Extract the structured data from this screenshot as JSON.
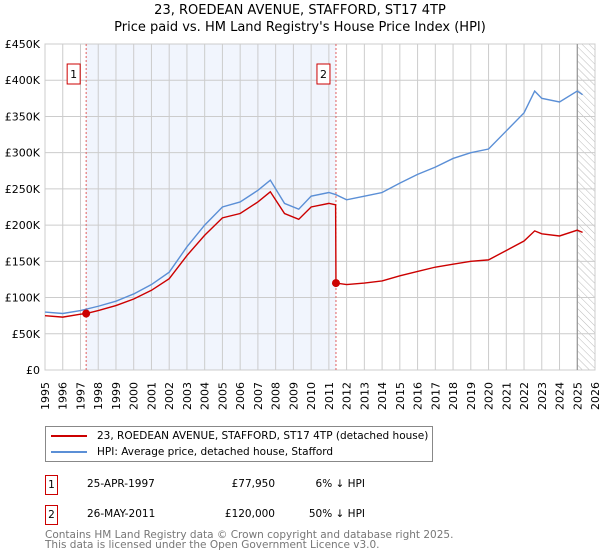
{
  "chart_data": {
    "type": "line",
    "title": "23, ROEDEAN AVENUE, STAFFORD, ST17 4TP",
    "subtitle": "Price paid vs. HM Land Registry's House Price Index (HPI)",
    "xlim": [
      1995,
      2026
    ],
    "ylim": [
      0,
      450000
    ],
    "x_ticks": [
      "1995",
      "1996",
      "1997",
      "1998",
      "1999",
      "2000",
      "2001",
      "2002",
      "2003",
      "2004",
      "2005",
      "2006",
      "2007",
      "2008",
      "2009",
      "2010",
      "2011",
      "2012",
      "2013",
      "2014",
      "2015",
      "2016",
      "2017",
      "2018",
      "2019",
      "2020",
      "2021",
      "2022",
      "2023",
      "2024",
      "2025",
      "2026"
    ],
    "y_ticks": [
      {
        "v": 0,
        "label": "£0"
      },
      {
        "v": 50000,
        "label": "£50K"
      },
      {
        "v": 100000,
        "label": "£100K"
      },
      {
        "v": 150000,
        "label": "£150K"
      },
      {
        "v": 200000,
        "label": "£200K"
      },
      {
        "v": 250000,
        "label": "£250K"
      },
      {
        "v": 300000,
        "label": "£300K"
      },
      {
        "v": 350000,
        "label": "£350K"
      },
      {
        "v": 400000,
        "label": "£400K"
      },
      {
        "v": 450000,
        "label": "£450K"
      }
    ],
    "grid": true,
    "shaded_range": [
      1997.32,
      2011.4
    ],
    "hatched_from": 2025.0,
    "series": [
      {
        "name": "23, ROEDEAN AVENUE, STAFFORD, ST17 4TP (detached house)",
        "color": "#cc0000",
        "x": [
          1995,
          1996,
          1997,
          1997.32,
          1998,
          1999,
          2000,
          2001,
          2002,
          2003,
          2004,
          2005,
          2006,
          2007,
          2007.7,
          2008.5,
          2009.3,
          2010,
          2011,
          2011.38,
          2011.4,
          2012,
          2013,
          2014,
          2015,
          2016,
          2017,
          2018,
          2019,
          2020,
          2021,
          2022,
          2022.6,
          2023,
          2024,
          2025,
          2025.3
        ],
        "y": [
          75000,
          73000,
          77000,
          77950,
          82000,
          89000,
          98000,
          110000,
          126000,
          158000,
          186000,
          210000,
          216000,
          232000,
          246000,
          216000,
          208000,
          225000,
          230000,
          228000,
          120000,
          118000,
          120000,
          123000,
          130000,
          136000,
          142000,
          146000,
          150000,
          152000,
          165000,
          178000,
          192000,
          188000,
          185000,
          193000,
          190000
        ]
      },
      {
        "name": "HPI: Average price, detached house, Stafford",
        "color": "#5b8fd6",
        "x": [
          1995,
          1996,
          1997,
          1998,
          1999,
          2000,
          2001,
          2002,
          2003,
          2004,
          2005,
          2006,
          2007,
          2007.7,
          2008.5,
          2009.3,
          2010,
          2011,
          2011.4,
          2012,
          2013,
          2014,
          2015,
          2016,
          2017,
          2018,
          2019,
          2020,
          2021,
          2022,
          2022.6,
          2023,
          2024,
          2025,
          2025.3
        ],
        "y": [
          80000,
          78000,
          82000,
          88000,
          95000,
          105000,
          118000,
          135000,
          170000,
          200000,
          225000,
          232000,
          248000,
          262000,
          230000,
          222000,
          240000,
          245000,
          242000,
          235000,
          240000,
          245000,
          258000,
          270000,
          280000,
          292000,
          300000,
          305000,
          330000,
          355000,
          385000,
          375000,
          370000,
          385000,
          380000
        ]
      }
    ],
    "annotations": [
      {
        "label": "1",
        "x": 1997.32,
        "y": 77950
      },
      {
        "label": "2",
        "x": 2011.4,
        "y": 120000
      }
    ]
  },
  "legend": {
    "red": "23, ROEDEAN AVENUE, STAFFORD, ST17 4TP (detached house)",
    "blue": "HPI: Average price, detached house, Stafford"
  },
  "sales": [
    {
      "num": "1",
      "date": "25-APR-1997",
      "price": "£77,950",
      "hpi": "6% ↓ HPI"
    },
    {
      "num": "2",
      "date": "26-MAY-2011",
      "price": "£120,000",
      "hpi": "50% ↓ HPI"
    }
  ],
  "footer": {
    "line1": "Contains HM Land Registry data © Crown copyright and database right 2025.",
    "line2": "This data is licensed under the Open Government Licence v3.0."
  }
}
